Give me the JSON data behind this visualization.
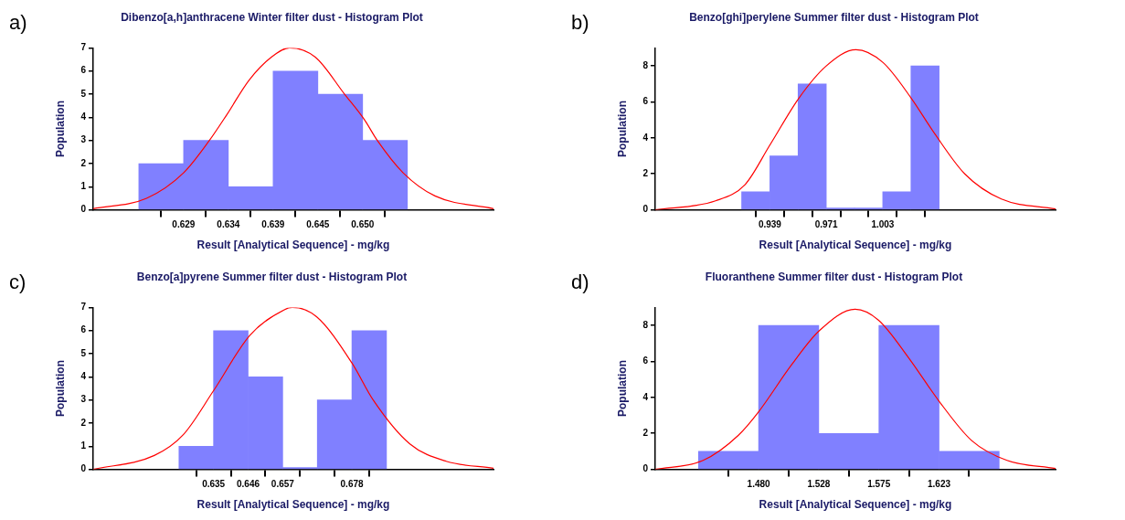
{
  "chart_data": [
    {
      "type": "histogram",
      "title": "Dibenzo[a,h]anthracene Winter filter dust - Histogram Plot",
      "xlabel": "Result [Analytical Sequence] - mg/kg",
      "ylabel": "Population",
      "annotations": [
        "a)"
      ],
      "xlim": [
        0.6185,
        0.665
      ],
      "xticks": [
        0.629,
        {
          "value": 0.6342,
          "label": "0.634"
        },
        {
          "value": 0.6394,
          "label": "0.639"
        },
        {
          "value": 0.6446,
          "label": "0.645"
        },
        {
          "value": 0.6498,
          "label": "0.650"
        }
      ],
      "ylim": [
        0,
        7
      ],
      "yticks": [
        0,
        1,
        2,
        3,
        4,
        5,
        6,
        7
      ],
      "marker": "none",
      "series": [
        {
          "color": "#8080ff",
          "bins": [
            0.6238,
            0.629,
            0.6342,
            0.6394,
            0.6446,
            0.6498,
            0.655
          ],
          "values": [
            2,
            3,
            1,
            6,
            5,
            3
          ]
        },
        {
          "type": "line",
          "color": "#ff0000",
          "x": [
            0.6185,
            0.6247,
            0.629,
            0.632,
            0.634,
            0.6366,
            0.6392,
            0.6413,
            0.6443,
            0.6477,
            0.65,
            0.6515,
            0.6545,
            0.6582,
            0.665
          ],
          "values": [
            0.05,
            0.5,
            1.6,
            3.0,
            4.1,
            5.6,
            6.6,
            7.0,
            6.6,
            5.0,
            3.9,
            3.0,
            1.6,
            0.6,
            0.05
          ]
        }
      ]
    },
    {
      "type": "histogram",
      "title": "Benzo[ghi]perylene Summer filter dust - Histogram Plot",
      "xlabel": "Result [Analytical Sequence] - mg/kg",
      "ylabel": "Population",
      "annotations": [
        "b)"
      ],
      "xlim": [
        0.874,
        1.101
      ],
      "xticks": [
        0.939,
        0.971,
        {
          "value": 1.003,
          "label": "1.003"
        }
      ],
      "ylim": [
        0,
        9
      ],
      "yticks": [
        0,
        2,
        4,
        6,
        8
      ],
      "marker": "none",
      "series": [
        {
          "color": "#8080ff",
          "bins": [
            0.923,
            0.939,
            0.955,
            0.971,
            0.987,
            1.003,
            1.019,
            1.035
          ],
          "values": [
            1,
            3,
            7,
            0,
            0,
            1,
            8
          ]
        },
        {
          "type": "line",
          "color": "#ff0000",
          "x": [
            0.874,
            0.9082,
            0.9249,
            0.939,
            0.9554,
            0.971,
            0.9878,
            1.003,
            1.0192,
            1.0327,
            1.0495,
            1.0703,
            1.101
          ],
          "values": [
            0,
            0.5,
            1.4,
            3.6,
            6.2,
            8.0,
            8.9,
            8.2,
            6.2,
            4.2,
            2.0,
            0.6,
            0.05
          ]
        }
      ]
    },
    {
      "type": "histogram",
      "title": "Benzo[a]pyrene Summer filter dust - Histogram Plot",
      "xlabel": "Result [Analytical Sequence] - mg/kg",
      "ylabel": "Population",
      "annotations": [
        "c)"
      ],
      "xlim": [
        0.5976,
        0.722
      ],
      "xticks": [
        0.635,
        {
          "value": 0.64575,
          "label": "0.646"
        },
        {
          "value": 0.6565,
          "label": "0.657"
        },
        0.678
      ],
      "ylim": [
        0,
        7
      ],
      "yticks": [
        0,
        1,
        2,
        3,
        4,
        5,
        6,
        7
      ],
      "marker": "none",
      "series": [
        {
          "color": "#8080ff",
          "bins": [
            0.62425,
            0.635,
            0.64575,
            0.6565,
            0.66725,
            0.678,
            0.68875
          ],
          "values": [
            1,
            6,
            4,
            0,
            3,
            6
          ]
        },
        {
          "type": "line",
          "color": "#ff0000",
          "x": [
            0.5976,
            0.6166,
            0.6256,
            0.635,
            0.6463,
            0.657,
            0.6595,
            0.667,
            0.678,
            0.6846,
            0.696,
            0.7073,
            0.722
          ],
          "values": [
            0,
            0.6,
            1.5,
            3.4,
            5.8,
            6.9,
            7.0,
            6.6,
            4.6,
            3.0,
            1.1,
            0.35,
            0.05
          ]
        }
      ]
    },
    {
      "type": "histogram",
      "title": "Fluoranthene Summer filter dust - Histogram Plot",
      "xlabel": "Result [Analytical Sequence] - mg/kg",
      "ylabel": "Population",
      "annotations": [
        "d)"
      ],
      "xlim": [
        1.398,
        1.7155
      ],
      "xticks": [
        {
          "value": 1.48,
          "label": "1.480"
        },
        {
          "value": 1.5277,
          "label": "1.528"
        },
        {
          "value": 1.5754,
          "label": "1.575"
        },
        {
          "value": 1.6231,
          "label": "1.623"
        }
      ],
      "ylim": [
        0,
        9
      ],
      "yticks": [
        0,
        2,
        4,
        6,
        8
      ],
      "marker": "none",
      "series": [
        {
          "color": "#8080ff",
          "bins": [
            1.4323,
            1.48,
            1.5277,
            1.5754,
            1.6231,
            1.6708
          ],
          "values": [
            1,
            8,
            2,
            8,
            1
          ]
        },
        {
          "type": "line",
          "color": "#ff0000",
          "x": [
            1.398,
            1.436,
            1.464,
            1.48,
            1.506,
            1.528,
            1.5566,
            1.575,
            1.599,
            1.623,
            1.649,
            1.677,
            1.7155
          ],
          "values": [
            0,
            0.5,
            1.9,
            3.2,
            5.8,
            7.7,
            8.9,
            8.3,
            6.2,
            3.8,
            1.6,
            0.5,
            0.05
          ]
        }
      ]
    }
  ]
}
